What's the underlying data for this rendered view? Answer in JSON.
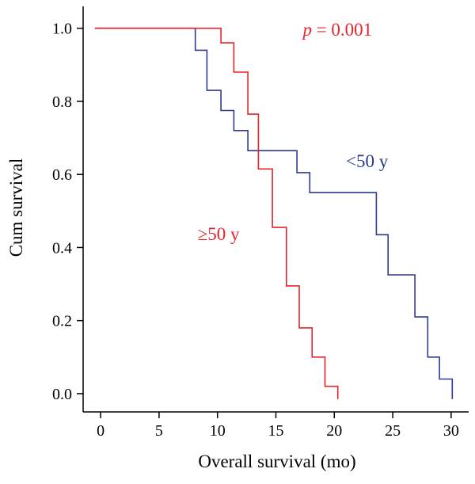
{
  "chart_data": {
    "type": "line",
    "step": true,
    "xlabel": "Overall survival (mo)",
    "ylabel": "Cum survival",
    "xlim": [
      -1.5,
      31.5
    ],
    "ylim": [
      -0.05,
      1.06
    ],
    "x_ticks": [
      0,
      5,
      10,
      15,
      20,
      25,
      30
    ],
    "y_ticks": [
      0.0,
      0.2,
      0.4,
      0.6,
      0.8,
      1.0
    ],
    "x_tick_labels": [
      "0",
      "5",
      "10",
      "15",
      "20",
      "25",
      "30"
    ],
    "y_tick_labels": [
      "0.0",
      "0.2",
      "0.4",
      "0.6",
      "0.8",
      "1.0"
    ],
    "grid": false,
    "series": [
      {
        "name": "<50 y",
        "color": "#2b3a8c",
        "points": [
          [
            -0.5,
            1.0
          ],
          [
            8.1,
            1.0
          ],
          [
            8.1,
            0.94
          ],
          [
            9.1,
            0.94
          ],
          [
            9.1,
            0.83
          ],
          [
            10.3,
            0.83
          ],
          [
            10.3,
            0.775
          ],
          [
            11.4,
            0.775
          ],
          [
            11.4,
            0.72
          ],
          [
            12.6,
            0.72
          ],
          [
            12.6,
            0.665
          ],
          [
            16.8,
            0.665
          ],
          [
            16.8,
            0.605
          ],
          [
            17.9,
            0.605
          ],
          [
            17.9,
            0.55
          ],
          [
            23.6,
            0.55
          ],
          [
            23.6,
            0.435
          ],
          [
            24.6,
            0.435
          ],
          [
            24.6,
            0.325
          ],
          [
            26.9,
            0.325
          ],
          [
            26.9,
            0.21
          ],
          [
            28.0,
            0.21
          ],
          [
            28.0,
            0.1
          ],
          [
            29.0,
            0.1
          ],
          [
            29.0,
            0.04
          ],
          [
            30.1,
            0.04
          ],
          [
            30.1,
            -0.015
          ]
        ]
      },
      {
        "name": "≥50 y",
        "color": "#e8232a",
        "points": [
          [
            -0.5,
            1.0
          ],
          [
            10.3,
            1.0
          ],
          [
            10.3,
            0.96
          ],
          [
            11.4,
            0.96
          ],
          [
            11.4,
            0.88
          ],
          [
            12.6,
            0.88
          ],
          [
            12.6,
            0.765
          ],
          [
            13.5,
            0.765
          ],
          [
            13.5,
            0.615
          ],
          [
            14.7,
            0.615
          ],
          [
            14.7,
            0.455
          ],
          [
            15.9,
            0.455
          ],
          [
            15.9,
            0.295
          ],
          [
            17.0,
            0.295
          ],
          [
            17.0,
            0.18
          ],
          [
            18.1,
            0.18
          ],
          [
            18.1,
            0.1
          ],
          [
            19.2,
            0.1
          ],
          [
            19.2,
            0.02
          ],
          [
            20.3,
            0.02
          ],
          [
            20.3,
            -0.015
          ]
        ]
      }
    ],
    "annotations": [
      {
        "p_symbol": "p",
        "p_text": " = 0.001",
        "color": "#e8232a",
        "x": 17.3,
        "y": 0.98
      },
      {
        "text": "<50 y",
        "color": "#2b3a8c",
        "x": 21.0,
        "y": 0.62
      },
      {
        "text": "≥50 y",
        "color": "#e8232a",
        "x": 8.3,
        "y": 0.42
      }
    ]
  }
}
